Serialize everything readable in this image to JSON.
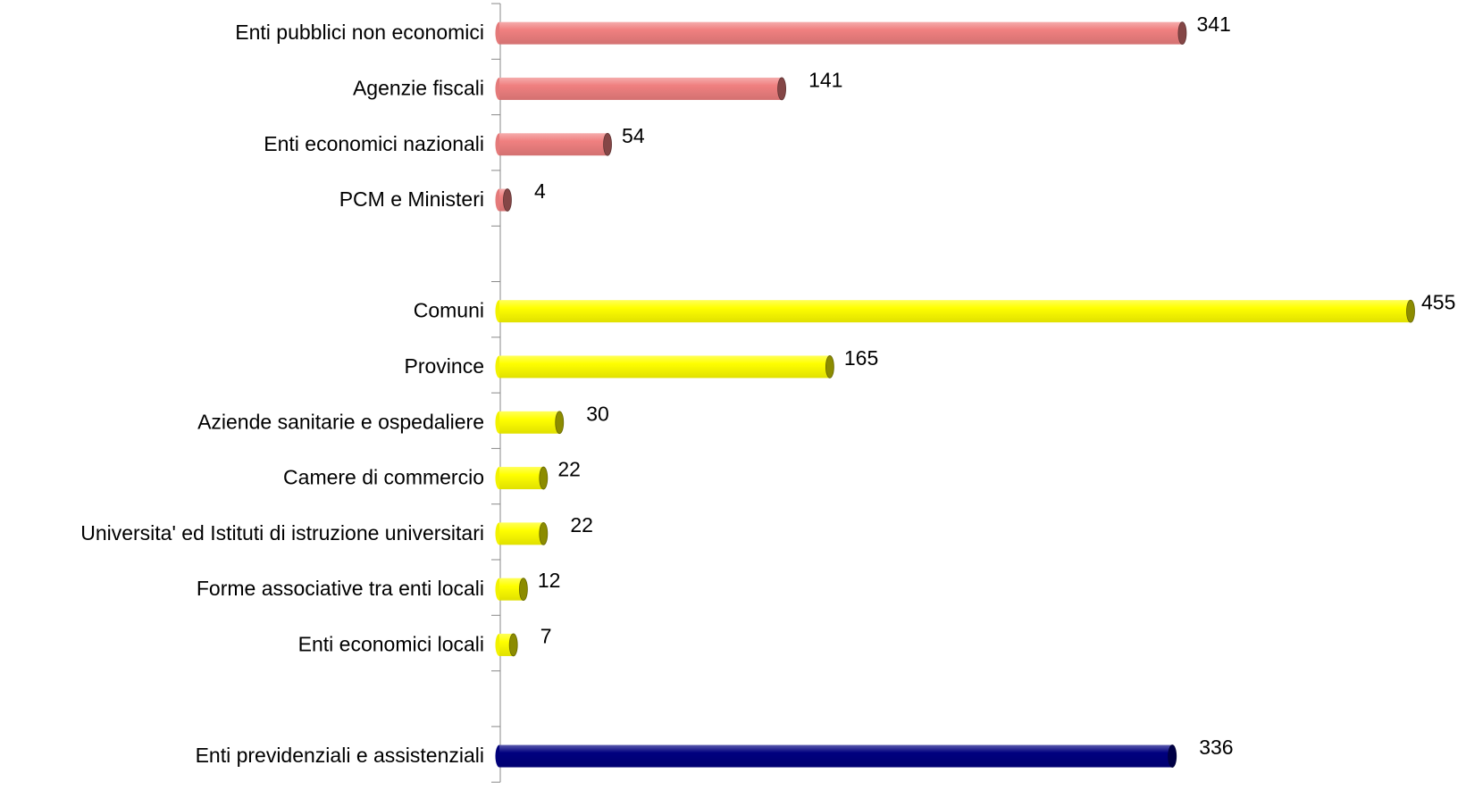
{
  "chart_data": {
    "type": "bar",
    "orientation": "horizontal",
    "title": "",
    "xlabel": "",
    "ylabel": "",
    "grid": false,
    "legend": "none",
    "xlim": [
      0,
      455
    ],
    "groups": [
      {
        "color": "#f08080",
        "rows": [
          {
            "label": "Enti pubblici non economici",
            "value": 341
          },
          {
            "label": "Agenzie fiscali",
            "value": 141
          },
          {
            "label": "Enti economici nazionali",
            "value": 54
          },
          {
            "label": "PCM e Ministeri",
            "value": 4
          }
        ]
      },
      {
        "color": "#ffff00",
        "rows": [
          {
            "label": "Comuni",
            "value": 455
          },
          {
            "label": "Province",
            "value": 165
          },
          {
            "label": "Aziende sanitarie e ospedaliere",
            "value": 30
          },
          {
            "label": "Camere di commercio",
            "value": 22
          },
          {
            "label": "Universita' ed Istituti di istruzione universitari",
            "value": 22
          },
          {
            "label": "Forme associative tra enti locali",
            "value": 12
          },
          {
            "label": "Enti economici locali",
            "value": 7
          }
        ]
      },
      {
        "color": "#00007f",
        "rows": [
          {
            "label": "Enti previdenziali e assistenziali",
            "value": 336
          }
        ]
      }
    ]
  }
}
